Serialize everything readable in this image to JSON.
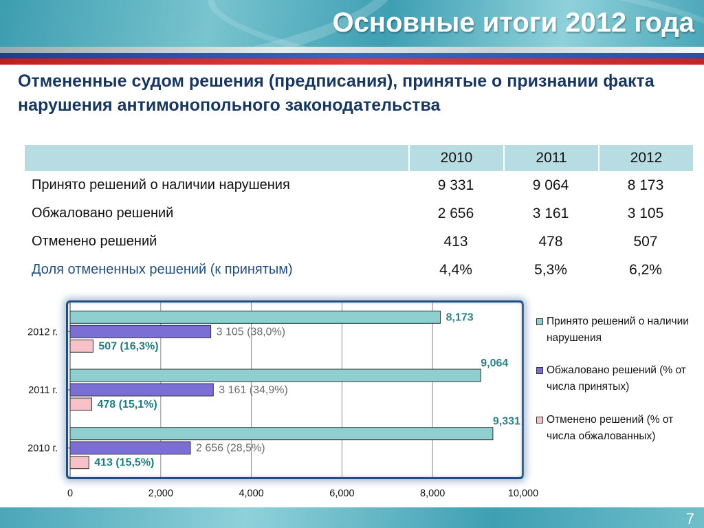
{
  "header": {
    "title": "Основные итоги 2012 года"
  },
  "subtitle": "Отмененные судом решения (предписания), принятые о признании факта нарушения антимонопольного законодательства",
  "table": {
    "years": [
      "2010",
      "2011",
      "2012"
    ],
    "rows": [
      {
        "label": "Принято решений о наличии нарушения",
        "values": [
          "9 331",
          "9 064",
          "8 173"
        ]
      },
      {
        "label": "Обжаловано решений",
        "values": [
          "2 656",
          "3 161",
          "3 105"
        ]
      },
      {
        "label": "Отменено решений",
        "values": [
          "413",
          "478",
          "507"
        ]
      },
      {
        "label": "Доля отмененных решений (к принятым)",
        "values": [
          "4,4%",
          "5,3%",
          "6,2%"
        ]
      }
    ]
  },
  "chart_data": {
    "type": "bar",
    "orientation": "horizontal",
    "categories": [
      "2010 г.",
      "2011 г.",
      "2012 г."
    ],
    "series": [
      {
        "name": "Принято решений о наличии нарушения",
        "values": [
          9331,
          9064,
          8173
        ],
        "labels": [
          "9,331",
          "9,064",
          "8,173"
        ],
        "color": "#8fcfcf",
        "label_color": "#2f7f86"
      },
      {
        "name": "Обжаловано решений (% от числа принятых)",
        "values": [
          2656,
          3161,
          3105
        ],
        "labels": [
          "2 656 (28,5%)",
          "3 161 (34,9%)",
          "3 105 (38,0%)"
        ],
        "color": "#7b6fd6",
        "label_color": "#6b6b6b"
      },
      {
        "name": "Отменено решений (% от числа обжалованных)",
        "values": [
          413,
          478,
          507
        ],
        "labels": [
          "413 (15,5%)",
          "478 (15,1%)",
          "507 (16,3%)"
        ],
        "color": "#f7c1c8",
        "label_color": "#1d7b7e"
      }
    ],
    "xlim": [
      0,
      10000
    ],
    "x_ticks": [
      "0",
      "2,000",
      "4,000",
      "6,000",
      "8,000",
      "10,000"
    ],
    "grid": true,
    "legend_position": "right"
  },
  "footer": {
    "page_number": "7"
  }
}
